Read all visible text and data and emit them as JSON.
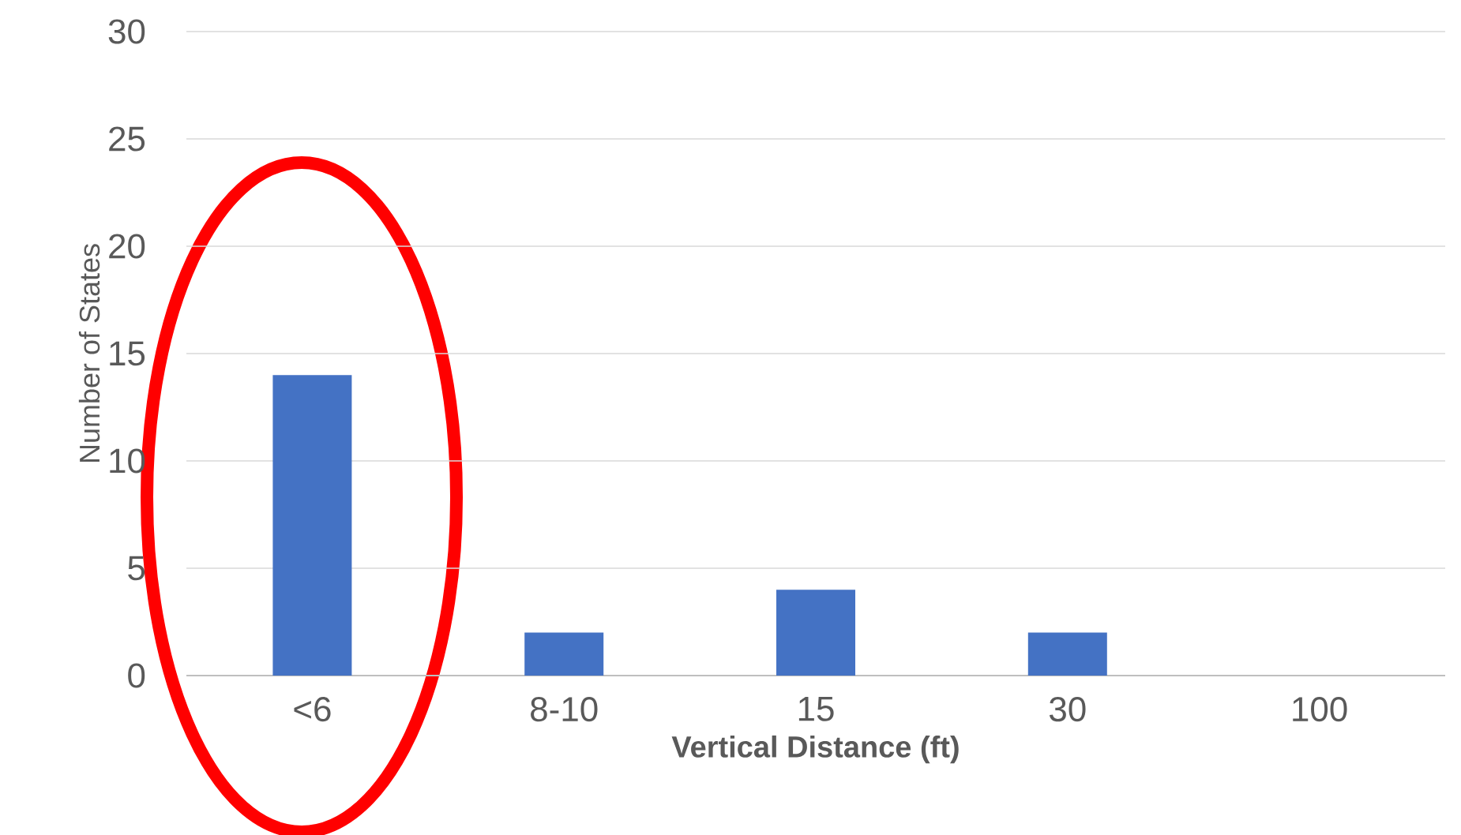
{
  "chart_data": {
    "type": "bar",
    "xlabel": "Vertical Distance (ft)",
    "ylabel": "Number of States",
    "categories": [
      "<6",
      "8-10",
      "15",
      "30",
      "100"
    ],
    "values": [
      14,
      2,
      4,
      2,
      0
    ],
    "color": "#4472c4",
    "ylim": [
      0,
      30
    ],
    "yticks": [
      0,
      5,
      10,
      15,
      20,
      25,
      30
    ],
    "grid": "y"
  }
}
